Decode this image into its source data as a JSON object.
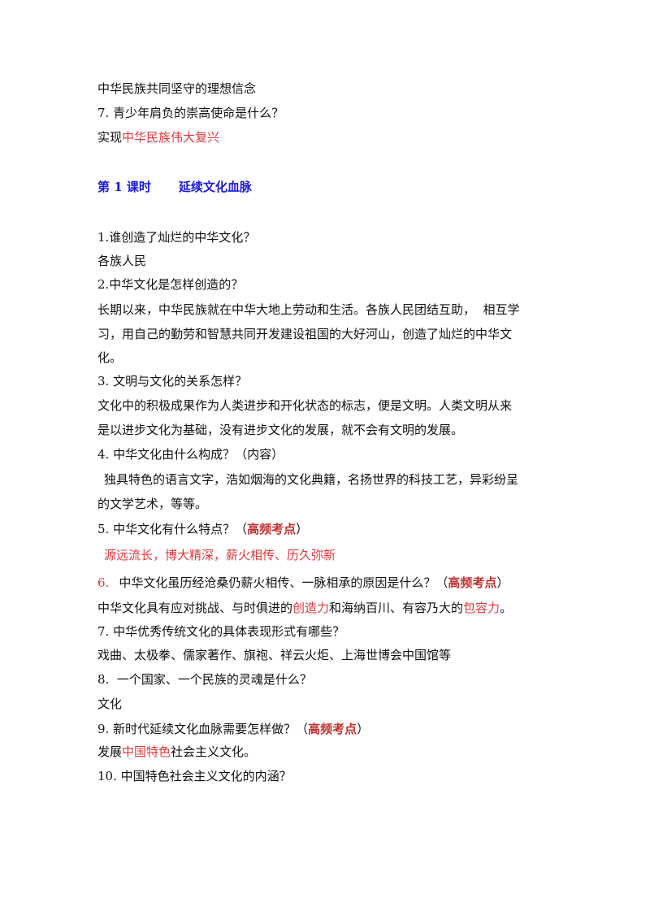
{
  "lines": [
    [
      "中华民族共同坚守的理想信念"
    ],
    [
      "7. 青少年肩负的崇高使命是什么？"
    ],
    [
      "实现",
      "中华民族伟大复兴"
    ],
    [
      "第 1 课时",
      "延续文化血脉"
    ],
    [
      "1.谁创造了灿烂的中华文化？"
    ],
    [
      "各族人民"
    ],
    [
      "2.中华文化是怎样创造的？"
    ],
    [
      "长期以来，中华民族就在中华大地上劳动和生活。各族人民团结互助，  相互学"
    ],
    [
      "习，用自己的勤劳和智慧共同开发建设祖国的大好河山，创造了灿烂的中华文"
    ],
    [
      "化。"
    ],
    [
      "3. 文明与文化的关系怎样？"
    ],
    [
      "文化中的积极成果作为人类进步和开化状态的标志，便是文明。人类文明从来"
    ],
    [
      "是以进步文化为基础，没有进步文化的发展，就不会有文明的发展。"
    ],
    [
      "4. 中华文化由什么构成？（内容）"
    ],
    [
      "独具特色的语言文字，浩如烟海的文化典籍，名扬世界的科技工艺，异彩纷呈"
    ],
    [
      "的文学艺术，等等。"
    ],
    [
      "5. 中华文化有什么特点？（",
      "高频考点",
      "）"
    ],
    [
      "源远流长，博大精深，薪火相传、历久弥新"
    ],
    [
      "6.",
      "中华文化虽历经沧桑仍薪火相传、一脉相承的原因是什么？（",
      "高频考点",
      "）"
    ],
    [
      "中华文化具有应对挑战、与时俱进的",
      "创造力",
      "和海纳百川、有容乃大的",
      "包容力",
      "。"
    ],
    [
      "7. 中华优秀传统文化的具体表现形式有哪些？"
    ],
    [
      "戏曲、太极拳、儒家著作、旗袍、祥云火炬、上海世博会中国馆等"
    ],
    [
      "8.  一个国家、一个民族的灵魂是什么？"
    ],
    [
      "文化"
    ],
    [
      "9. 新时代延续文化血脉需要怎样做？（",
      "高频考点",
      "）"
    ],
    [
      "发展",
      "中国特色",
      "社会主义文化。"
    ],
    [
      "10. 中国特色社会主义文化的内涵？"
    ]
  ]
}
